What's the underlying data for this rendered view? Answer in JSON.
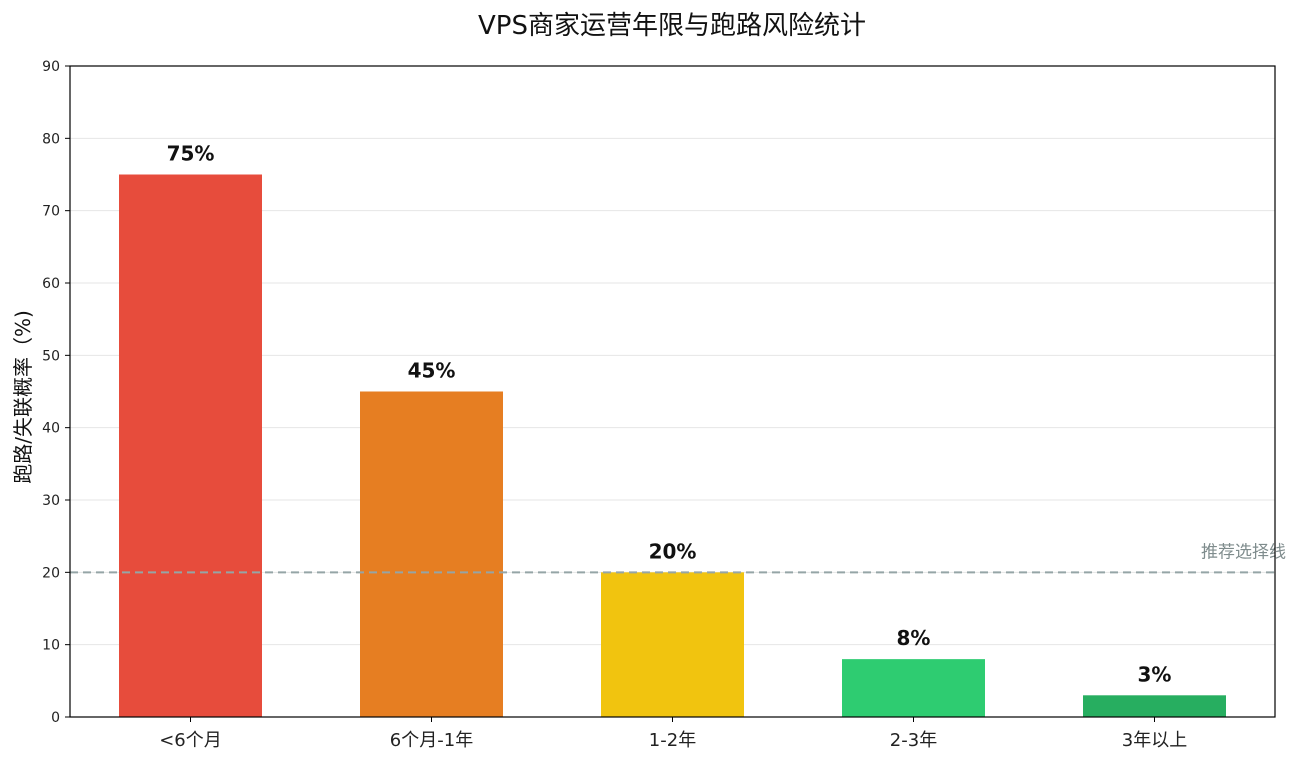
{
  "chart_data": {
    "type": "bar",
    "title": "VPS商家运营年限与跑路风险统计",
    "xlabel": "",
    "ylabel": "跑路/失联概率（%)",
    "ylim": [
      0,
      90
    ],
    "yticks": [
      0,
      10,
      20,
      30,
      40,
      50,
      60,
      70,
      80,
      90
    ],
    "grid": "y",
    "categories": [
      "<6个月",
      "6个月-1年",
      "1-2年",
      "2-3年",
      "3年以上"
    ],
    "values": [
      75,
      45,
      20,
      8,
      3
    ],
    "data_labels": [
      "75%",
      "45%",
      "20%",
      "8%",
      "3%"
    ],
    "colors": [
      "#e74c3c",
      "#e67e22",
      "#f1c40f",
      "#2ecc71",
      "#27ae60"
    ],
    "reference_line": {
      "value": 20,
      "label": "推荐选择线",
      "color": "#95a5a6",
      "style": "dashed"
    }
  }
}
